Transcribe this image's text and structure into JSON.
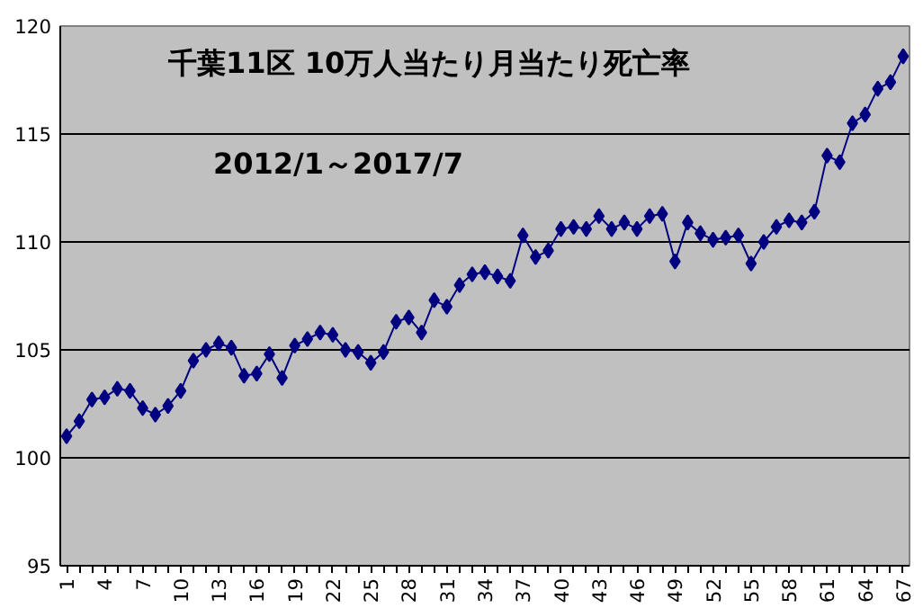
{
  "chart_data": {
    "type": "line",
    "title": "千葉11区 10万人当たり月当たり死亡率",
    "subtitle": "2012/1～2017/7",
    "categories": [
      "1",
      null,
      null,
      "4",
      null,
      null,
      "7",
      null,
      null,
      "10",
      null,
      null,
      "13",
      null,
      null,
      "16",
      null,
      null,
      "19",
      null,
      null,
      "22",
      null,
      null,
      "25",
      null,
      null,
      "28",
      null,
      null,
      "31",
      null,
      null,
      "34",
      null,
      null,
      "37",
      null,
      null,
      "40",
      null,
      null,
      "43",
      null,
      null,
      "46",
      null,
      null,
      "49",
      null,
      null,
      "52",
      null,
      null,
      "55",
      null,
      null,
      "58",
      null,
      null,
      "61",
      null,
      null,
      "64",
      null,
      null,
      "67"
    ],
    "series": [
      {
        "color": "#000080",
        "values": [
          101.0,
          101.7,
          102.7,
          102.8,
          103.2,
          103.1,
          102.3,
          102.0,
          102.4,
          103.1,
          104.5,
          105.0,
          105.3,
          105.1,
          103.8,
          103.9,
          104.8,
          103.7,
          105.2,
          105.5,
          105.8,
          105.7,
          105.0,
          104.9,
          104.4,
          104.9,
          106.3,
          106.5,
          105.8,
          107.3,
          107.0,
          108.0,
          108.5,
          108.6,
          108.4,
          108.2,
          110.3,
          109.3,
          109.6,
          110.6,
          110.7,
          110.6,
          111.2,
          110.6,
          110.9,
          110.6,
          111.2,
          111.3,
          109.1,
          110.9,
          110.4,
          110.1,
          110.2,
          110.3,
          109.0,
          110.0,
          110.7,
          111.0,
          110.9,
          111.4,
          114.0,
          113.7,
          115.5,
          115.9,
          117.1,
          117.4,
          118.6
        ]
      }
    ],
    "ylim": [
      95,
      120
    ],
    "yticks": [
      95,
      100,
      105,
      110,
      115,
      120
    ],
    "grid": "y",
    "marker": "diamond",
    "line_style": "solid"
  }
}
